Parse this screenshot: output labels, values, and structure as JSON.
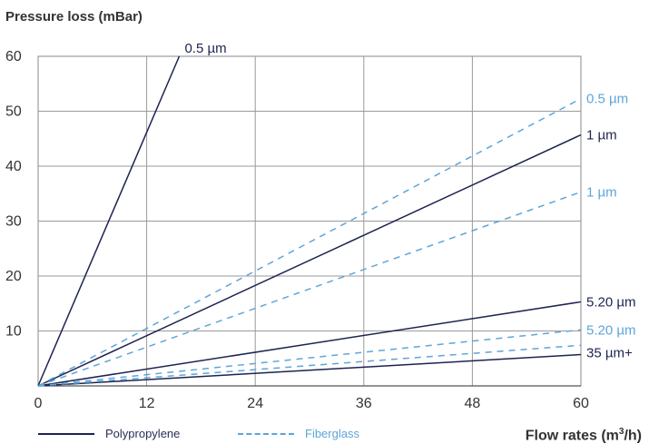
{
  "chart_data": {
    "type": "line",
    "xlabel": "Flow rates (m³/h)",
    "ylabel": "Pressure loss (mBar)",
    "xlim": [
      0,
      60
    ],
    "ylim": [
      0,
      60
    ],
    "xticks": [
      0,
      12,
      24,
      36,
      48,
      60
    ],
    "yticks": [
      10,
      20,
      30,
      40,
      50,
      60
    ],
    "grid": true,
    "legend_position": "bottom-left",
    "legend": [
      {
        "name": "Polypropylene",
        "style": "solid",
        "color": "#1d2350"
      },
      {
        "name": "Fiberglass",
        "style": "dashed",
        "color": "#5ea5d8"
      }
    ],
    "series": [
      {
        "label": "0.5 µm",
        "group": "Polypropylene",
        "x": [
          0,
          15.6
        ],
        "y": [
          0,
          60
        ]
      },
      {
        "label": "1 µm",
        "group": "Polypropylene",
        "x": [
          0,
          60
        ],
        "y": [
          0,
          45.7
        ]
      },
      {
        "label": "5.20 µm",
        "group": "Polypropylene",
        "x": [
          0,
          60
        ],
        "y": [
          0,
          15.3
        ]
      },
      {
        "label": "35 µm+",
        "group": "Polypropylene",
        "x": [
          0,
          60
        ],
        "y": [
          0,
          5.7
        ]
      },
      {
        "label": "0.5 µm",
        "group": "Fiberglass",
        "x": [
          0,
          60
        ],
        "y": [
          0,
          52.3
        ]
      },
      {
        "label": "1 µm",
        "group": "Fiberglass",
        "x": [
          0,
          60
        ],
        "y": [
          0,
          35.3
        ]
      },
      {
        "label": "5.20 µm",
        "group": "Fiberglass",
        "x": [
          0,
          60
        ],
        "y": [
          0,
          10.2
        ]
      },
      {
        "label": null,
        "group": "Fiberglass",
        "x": [
          0,
          60
        ],
        "y": [
          0,
          7.4
        ]
      }
    ]
  }
}
